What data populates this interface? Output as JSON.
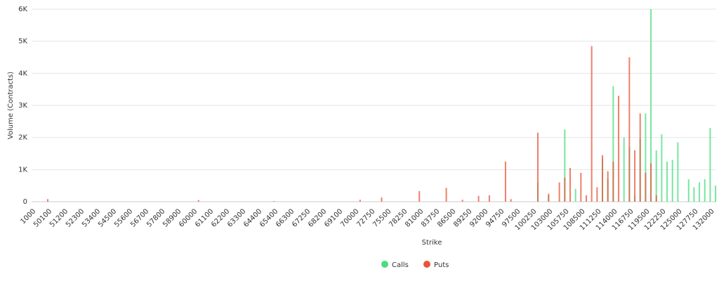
{
  "chart_data": {
    "type": "bar",
    "x_label": "Strike",
    "y_label": "Volume (Contracts)",
    "categories": [
      "1000",
      null,
      null,
      "50100",
      null,
      null,
      "51200",
      null,
      null,
      "52300",
      null,
      null,
      "53400",
      null,
      null,
      "54500",
      null,
      null,
      "55600",
      null,
      null,
      "56700",
      null,
      null,
      "57800",
      null,
      null,
      "58900",
      null,
      null,
      "60000",
      null,
      null,
      "61100",
      null,
      null,
      "62200",
      null,
      null,
      "63300",
      null,
      null,
      "64400",
      null,
      null,
      "65400",
      null,
      null,
      "66300",
      null,
      null,
      "67250",
      null,
      null,
      "68200",
      null,
      null,
      "69100",
      null,
      null,
      "70000",
      null,
      null,
      "72750",
      null,
      null,
      "75500",
      null,
      null,
      "78250",
      null,
      null,
      "81000",
      null,
      null,
      "83750",
      null,
      null,
      "86500",
      null,
      null,
      "89250",
      null,
      null,
      "92000",
      null,
      null,
      "94750",
      null,
      null,
      "97500",
      null,
      null,
      "100250",
      null,
      null,
      "103000",
      null,
      null,
      "105750",
      null,
      null,
      "108500",
      null,
      null,
      "111250",
      null,
      null,
      "114000",
      null,
      null,
      "116750",
      null,
      null,
      "119500",
      null,
      null,
      "122250",
      null,
      null,
      "125000",
      null,
      null,
      "127750",
      null,
      null,
      "132000",
      null
    ],
    "series": [
      {
        "name": "Calls",
        "color": "#4ade80",
        "values": [
          0,
          0,
          0,
          0,
          0,
          0,
          0,
          0,
          0,
          0,
          0,
          0,
          0,
          0,
          0,
          0,
          0,
          0,
          0,
          0,
          0,
          0,
          0,
          0,
          0,
          0,
          0,
          0,
          0,
          0,
          0,
          0,
          0,
          0,
          0,
          0,
          0,
          0,
          0,
          0,
          0,
          0,
          0,
          0,
          0,
          0,
          0,
          0,
          0,
          0,
          0,
          0,
          0,
          0,
          0,
          0,
          0,
          0,
          0,
          0,
          0,
          0,
          0,
          0,
          0,
          0,
          0,
          0,
          0,
          0,
          0,
          0,
          0,
          0,
          0,
          0,
          0,
          0,
          0,
          0,
          0,
          0,
          0,
          0,
          0,
          0,
          0,
          0,
          0,
          0,
          0,
          0,
          0,
          0,
          600,
          0,
          200,
          0,
          0,
          2250,
          0,
          400,
          0,
          0,
          0,
          0,
          1350,
          700,
          3600,
          0,
          2000,
          1700,
          200,
          1950,
          2750,
          6000,
          1600,
          2100,
          1250,
          1300,
          1850,
          0,
          700,
          450,
          600,
          700,
          2300,
          500
        ]
      },
      {
        "name": "Puts",
        "color": "#e8553a",
        "values": [
          0,
          0,
          0,
          80,
          0,
          0,
          0,
          0,
          0,
          0,
          0,
          0,
          0,
          0,
          0,
          0,
          0,
          0,
          0,
          0,
          0,
          0,
          0,
          0,
          0,
          0,
          0,
          0,
          0,
          0,
          0,
          50,
          0,
          0,
          0,
          0,
          0,
          0,
          0,
          0,
          0,
          0,
          0,
          0,
          0,
          20,
          0,
          0,
          0,
          0,
          0,
          0,
          0,
          0,
          0,
          0,
          0,
          0,
          0,
          0,
          0,
          60,
          0,
          0,
          0,
          130,
          0,
          0,
          0,
          0,
          0,
          0,
          330,
          0,
          0,
          0,
          0,
          430,
          0,
          0,
          60,
          0,
          0,
          180,
          0,
          200,
          0,
          0,
          1250,
          80,
          0,
          0,
          0,
          0,
          2150,
          0,
          250,
          0,
          600,
          750,
          1050,
          0,
          900,
          200,
          4850,
          450,
          1450,
          950,
          1250,
          3300,
          0,
          4500,
          1600,
          2750,
          900,
          1200,
          200,
          0,
          0,
          0,
          0,
          0,
          0,
          0,
          0,
          0,
          0,
          0
        ]
      }
    ],
    "ylim": [
      0,
      6000
    ],
    "yticks": [
      0,
      {
        "value": 1000,
        "label": "1K"
      },
      {
        "value": 2000,
        "label": "2K"
      },
      {
        "value": 3000,
        "label": "3K"
      },
      {
        "value": 4000,
        "label": "4K"
      },
      {
        "value": 5000,
        "label": "5K"
      },
      {
        "value": 6000,
        "label": "6K"
      }
    ],
    "grid": true
  }
}
